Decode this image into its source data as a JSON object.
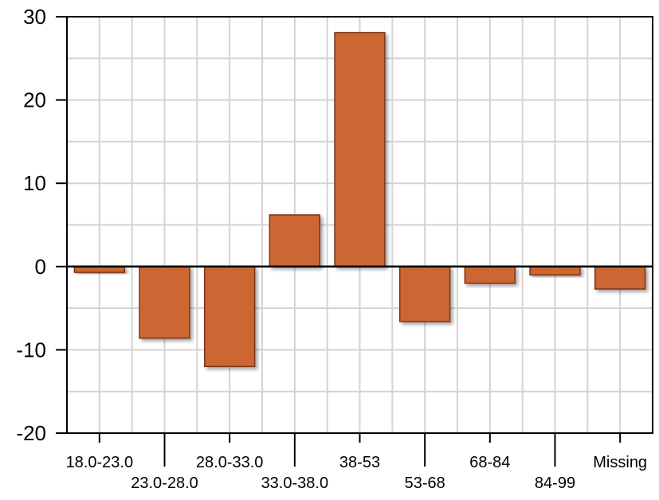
{
  "chart_data": {
    "type": "bar",
    "categories": [
      "18.0-23.0",
      "23.0-28.0",
      "28.0-33.0",
      "33.0-38.0",
      "38-53",
      "53-68",
      "68-84",
      "84-99",
      "Missing"
    ],
    "values": [
      -0.7,
      -8.6,
      -12.0,
      6.2,
      28.1,
      -6.6,
      -2.0,
      -1.0,
      -2.7
    ],
    "yticks": [
      30,
      20,
      10,
      0,
      -10,
      -20
    ],
    "ylim": [
      -20,
      30
    ],
    "grid": true,
    "colors": {
      "bar": "#cc6633",
      "bar_stroke": "#7a3416",
      "grid": "#d3d3d3"
    }
  }
}
